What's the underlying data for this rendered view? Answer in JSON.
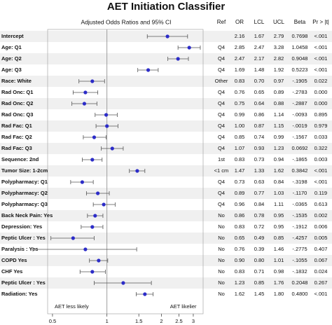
{
  "chart_data": {
    "type": "forest",
    "title": "AET Initiation Classifier",
    "subtitle": "Adjusted Odds Ratios and 95% CI",
    "columns": [
      "Ref",
      "OR",
      "LCL",
      "UCL",
      "Beta",
      "Pr > |t|"
    ],
    "annotations": [
      "AET less likely",
      "AET likelier"
    ],
    "categories": [
      "Intercept",
      "Age: Q1",
      "Age: Q2",
      "Age: Q3",
      "Race: White",
      "Rad Onc: Q1",
      "Rad Onc: Q2",
      "Rad Onc: Q3",
      "Rad Fac: Q1",
      "Rad Fac: Q2",
      "Rad Fac: Q3",
      "Sequence: 2nd",
      "Tumor Size: 1-2cm",
      "Polypharmacy: Q1",
      "Polypharmacy: Q2",
      "Polypharmacy: Q3",
      "Back Neck Pain: Yes",
      "Depression: Yes",
      "Peptic Ulcer : Yes",
      "Paralysis : Yes",
      "COPD Yes",
      "CHF Yes",
      "Peptic Ulcer : Yes",
      "Radiation: Yes"
    ],
    "refs": [
      null,
      "Q4",
      "Q4",
      "Q4",
      "Other",
      "Q4",
      "Q4",
      "Q4",
      "Q4",
      "Q4",
      "Q4",
      "1st",
      "<1 cm",
      "Q4",
      "Q4",
      "Q4",
      "No",
      "No",
      "No",
      "No",
      "No",
      "No",
      "No",
      "No"
    ],
    "values": [
      2.16,
      2.85,
      2.47,
      1.69,
      0.83,
      0.76,
      0.75,
      0.99,
      1.0,
      0.85,
      1.07,
      0.83,
      1.47,
      0.73,
      0.89,
      0.96,
      0.86,
      0.83,
      0.65,
      0.76,
      0.9,
      0.83,
      1.23,
      1.62
    ],
    "value_labels": [
      "2.16",
      "2.85",
      "2.47",
      "1.69",
      "0.83",
      "0.76",
      "0.75",
      "0.99",
      "1.00",
      "0.85",
      "1.07",
      "0.83",
      "1.47",
      "0.73",
      "0.89",
      "0.96",
      "0.86",
      "0.83",
      "0.65",
      "0.76",
      "0.90",
      "0.83",
      "1.23",
      "1.62"
    ],
    "lcl": [
      1.67,
      2.47,
      2.17,
      1.48,
      0.7,
      0.65,
      0.64,
      0.86,
      0.87,
      0.74,
      0.93,
      0.73,
      1.33,
      0.63,
      0.77,
      0.84,
      0.78,
      0.72,
      0.49,
      0.39,
      0.8,
      0.71,
      0.85,
      1.45
    ],
    "lcl_labels": [
      "1.67",
      "2.47",
      "2.17",
      "1.48",
      "0.70",
      "0.65",
      "0.64",
      "0.86",
      "0.87",
      "0.74",
      "0.93",
      "0.73",
      "1.33",
      "0.63",
      "0.77",
      "0.84",
      "0.78",
      "0.72",
      "0.49",
      "0.39",
      "0.80",
      "0.71",
      "0.85",
      "1.45"
    ],
    "ucl": [
      2.79,
      3.28,
      2.82,
      1.92,
      0.97,
      0.89,
      0.88,
      1.14,
      1.15,
      0.99,
      1.23,
      0.94,
      1.62,
      0.84,
      1.03,
      1.11,
      0.95,
      0.95,
      0.85,
      1.46,
      1.01,
      0.98,
      1.76,
      1.8
    ],
    "ucl_labels": [
      "2.79",
      "3.28",
      "2.82",
      "1.92",
      "0.97",
      "0.89",
      "0.88",
      "1.14",
      "1.15",
      "0.99",
      "1.23",
      "0.94",
      "1.62",
      "0.84",
      "1.03",
      "1.11",
      "0.95",
      "0.95",
      "0.85",
      "1.46",
      "1.01",
      "0.98",
      "1.76",
      "1.80"
    ],
    "beta": [
      "0.7698",
      "1.0458",
      "0.9048",
      "0.5223",
      "-.1905",
      "-.2783",
      "-.2887",
      "-.0093",
      "-.0019",
      "-.1567",
      "0.0692",
      "-.1865",
      "0.3842",
      "-.3198",
      "-.1170",
      "-.0365",
      "-.1535",
      "-.1912",
      "-.4257",
      "-.2775",
      "-.1055",
      "-.1832",
      "0.2048",
      "0.4800"
    ],
    "p": [
      "<.001",
      "<.001",
      "<.001",
      "<.001",
      "0.022",
      "0.000",
      "0.000",
      "0.895",
      "0.979",
      "0.033",
      "0.322",
      "0.003",
      "<.001",
      "<.001",
      "0.119",
      "0.613",
      "0.002",
      "0.006",
      "0.005",
      "0.407",
      "0.067",
      "0.024",
      "0.267",
      "<.001"
    ],
    "xlim": [
      0.47,
      3.4
    ],
    "xticks": [
      0.5,
      1,
      1.5,
      2,
      2.5,
      3
    ],
    "xscale": "log",
    "reference": 1,
    "color": "#2c2cc8"
  }
}
